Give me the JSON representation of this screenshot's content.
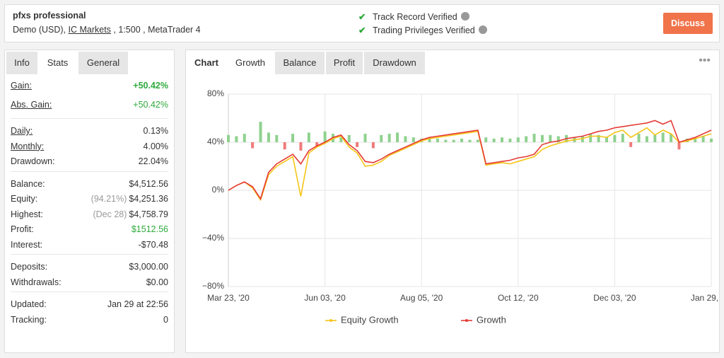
{
  "header": {
    "title": "pfxs professional",
    "account_prefix": "Demo (USD),",
    "broker": "IC Markets",
    "account_suffix": ", 1:500 , MetaTrader 4",
    "verifications": [
      "Track Record Verified",
      "Trading Privileges Verified"
    ],
    "button": "Discuss"
  },
  "sidebar": {
    "tabs": [
      "Info",
      "Stats",
      "General"
    ],
    "active_tab": 1,
    "groups": [
      [
        {
          "label": "Gain:",
          "value": "+50.42%",
          "color": "#2eaa3c",
          "bold": true,
          "underline": true
        },
        {
          "label": "Abs. Gain:",
          "value": "+50.42%",
          "color": "#2eaa3c",
          "underline": true
        }
      ],
      [
        {
          "label": "Daily:",
          "value": "0.13%",
          "underline": true
        },
        {
          "label": "Monthly:",
          "value": "4.00%",
          "underline": true
        },
        {
          "label": "Drawdown:",
          "value": "22.04%"
        }
      ],
      [
        {
          "label": "Balance:",
          "value": "$4,512.56"
        },
        {
          "label": "Equity:",
          "note": "(94.21%)",
          "value": "$4,251.36"
        },
        {
          "label": "Highest:",
          "note": "(Dec 28)",
          "value": "$4,758.79"
        },
        {
          "label": "Profit:",
          "value": "$1512.56",
          "color": "#2eaa3c"
        },
        {
          "label": "Interest:",
          "value": "-$70.48"
        }
      ],
      [
        {
          "label": "Deposits:",
          "value": "$3,000.00"
        },
        {
          "label": "Withdrawals:",
          "value": "$0.00"
        }
      ],
      [
        {
          "label": "Updated:",
          "value": "Jan 29 at 22:56"
        },
        {
          "label": "Tracking:",
          "value": "0"
        }
      ]
    ]
  },
  "chart_tabs": {
    "tabs": [
      "Chart",
      "Growth",
      "Balance",
      "Profit",
      "Drawdown"
    ],
    "active_tab": 1
  },
  "chart_data": {
    "type": "line",
    "x": [
      "Mar 23, '20",
      null,
      null,
      null,
      null,
      null,
      null,
      null,
      null,
      null,
      null,
      null,
      "Jun 03, '20",
      null,
      null,
      null,
      null,
      null,
      null,
      null,
      null,
      null,
      null,
      null,
      "Aug 05, '20",
      null,
      null,
      null,
      null,
      null,
      null,
      null,
      null,
      null,
      null,
      null,
      "Oct 12, '20",
      null,
      null,
      null,
      null,
      null,
      null,
      null,
      null,
      null,
      null,
      null,
      "Dec 03, '20",
      null,
      null,
      null,
      null,
      null,
      null,
      null,
      null,
      null,
      null,
      null,
      "Jan 29, '21"
    ],
    "series": [
      {
        "name": "Equity Growth",
        "color": "#f5c518",
        "values": [
          0,
          4,
          7,
          2,
          -8,
          13,
          20,
          24,
          28,
          -5,
          31,
          36,
          39,
          43,
          45,
          36,
          31,
          20,
          21,
          24,
          29,
          32,
          35,
          38,
          41,
          43,
          44,
          45,
          46,
          47,
          48,
          49,
          21,
          22,
          23,
          22,
          24,
          26,
          28,
          34,
          37,
          39,
          41,
          42,
          43,
          45,
          45,
          44,
          48,
          50,
          44,
          48,
          52,
          46,
          50,
          47,
          40,
          41,
          43,
          45,
          47
        ]
      },
      {
        "name": "Growth",
        "color": "#e53935",
        "values": [
          0,
          4,
          7,
          3,
          -7,
          15,
          22,
          26,
          30,
          22,
          33,
          37,
          40,
          44,
          46,
          38,
          33,
          24,
          23,
          26,
          30,
          33,
          36,
          39,
          42,
          44,
          45,
          46,
          47,
          48,
          49,
          50,
          22,
          23,
          24,
          25,
          27,
          28,
          30,
          38,
          40,
          41,
          43,
          44,
          45,
          47,
          49,
          50,
          52,
          53,
          54,
          55,
          56,
          58,
          55,
          58,
          40,
          42,
          44,
          47,
          50
        ]
      }
    ],
    "bars": {
      "up_color": "#8fd18f",
      "down_color": "#f07a7a",
      "values": [
        46,
        45,
        47,
        35,
        57,
        48,
        46,
        34,
        47,
        33,
        48,
        36,
        49,
        47,
        44,
        46,
        36,
        47,
        35,
        46,
        47,
        48,
        45,
        44,
        43,
        44,
        43,
        42,
        42,
        43,
        42,
        42,
        44,
        43,
        44,
        43,
        44,
        45,
        47,
        46,
        46,
        45,
        46,
        44,
        45,
        47,
        46,
        44,
        46,
        47,
        36,
        47,
        45,
        46,
        48,
        47,
        34,
        43,
        44,
        45,
        43
      ]
    },
    "ylim": [
      -80,
      80
    ],
    "yticks": [
      {
        "value": -80,
        "label": "−80%"
      },
      {
        "value": -40,
        "label": "−40%"
      },
      {
        "value": 0,
        "label": "0%"
      },
      {
        "value": 40,
        "label": "40%"
      },
      {
        "value": 80,
        "label": "80%"
      }
    ],
    "grid": true,
    "legend": "bottom"
  }
}
